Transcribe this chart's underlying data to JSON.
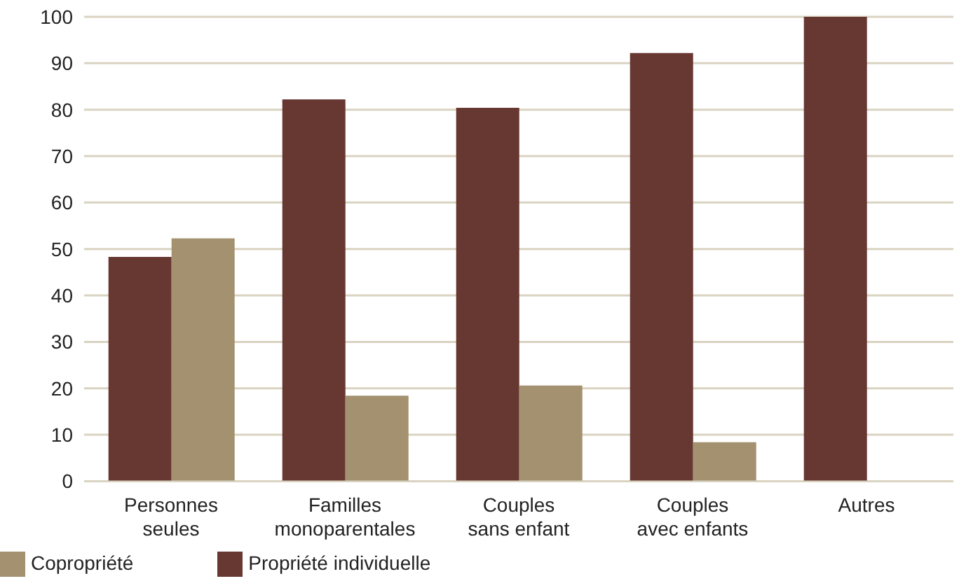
{
  "chart_data": {
    "type": "bar",
    "categories": [
      "Personnes seules",
      "Familles monoparentales",
      "Couples sans enfant",
      "Couples avec enfants",
      "Autres"
    ],
    "series": [
      {
        "name": "Propriété individuelle",
        "color": "#673731",
        "values": [
          48.3,
          82.2,
          80.4,
          92.2,
          100
        ]
      },
      {
        "name": "Copropriété",
        "color": "#a39170",
        "values": [
          52.3,
          18.4,
          20.6,
          8.4,
          0
        ]
      }
    ],
    "ylim": [
      0,
      100
    ],
    "yticks": [
      0,
      10,
      20,
      30,
      40,
      50,
      60,
      70,
      80,
      90,
      100
    ],
    "grid": "y",
    "legend": "bottom left"
  }
}
